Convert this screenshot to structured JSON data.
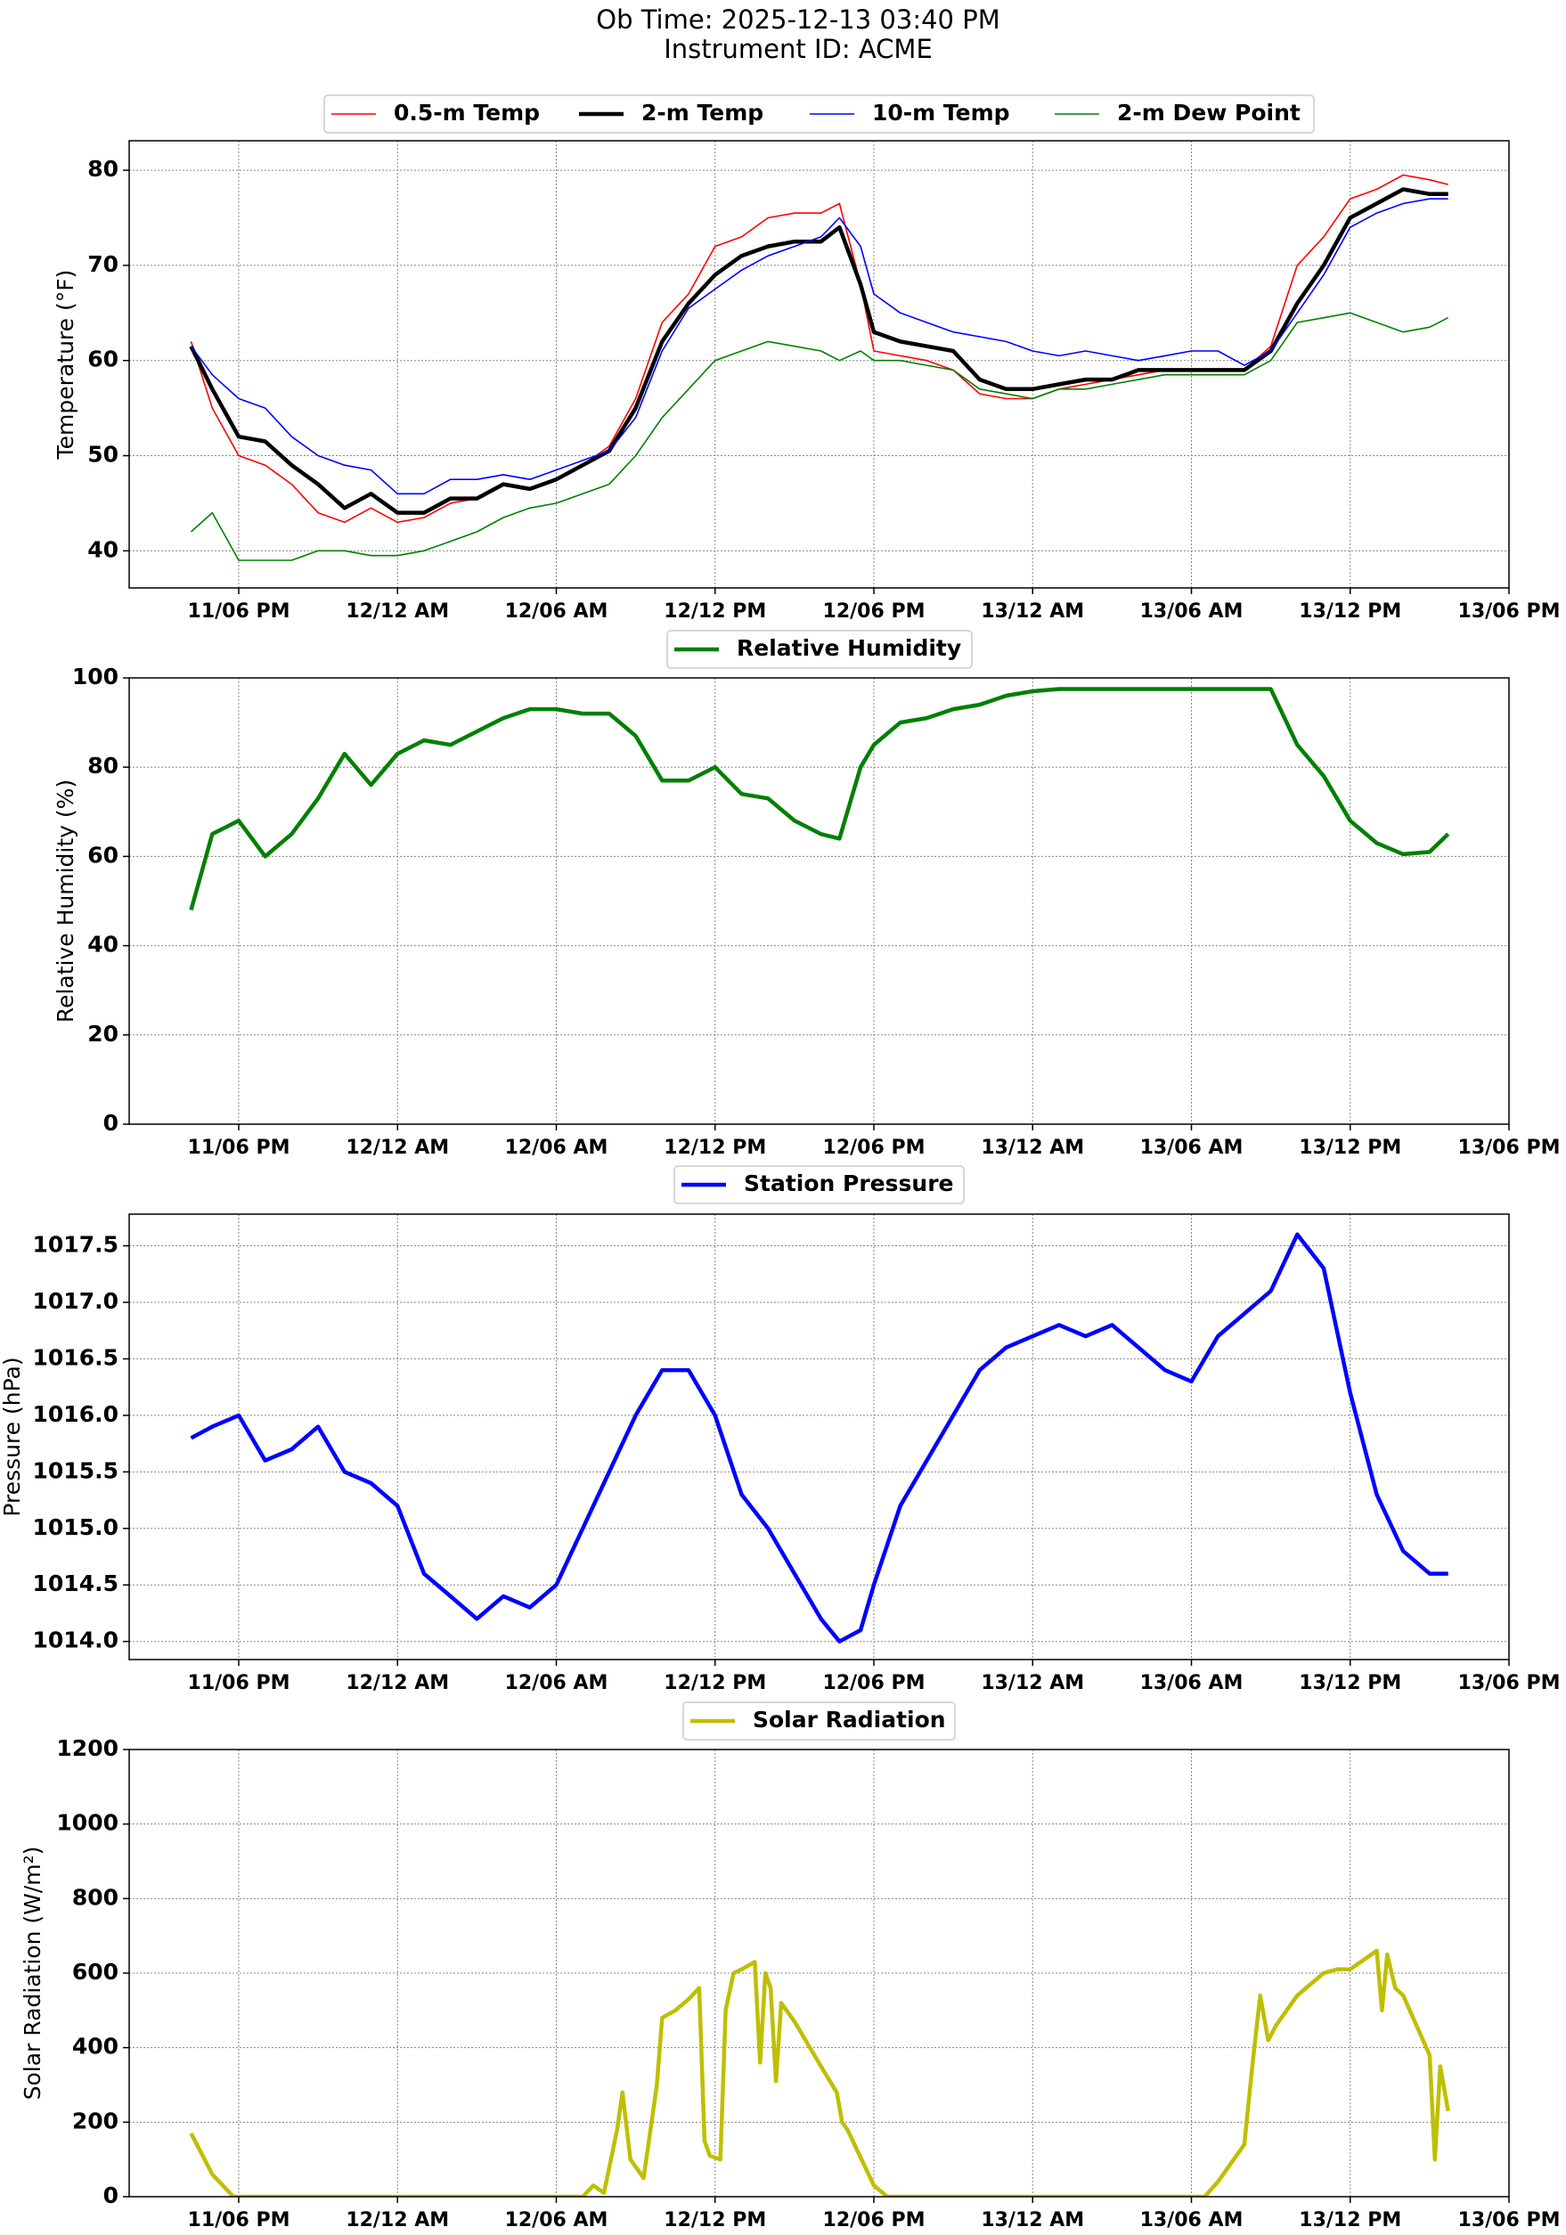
{
  "header": {
    "title_line1": "Ob Time: 2025-12-13 03:40 PM",
    "title_line2": "Instrument ID: ACME"
  },
  "x_axis": {
    "units": "hours since 11/06 PM",
    "range": [
      -4.14,
      48
    ],
    "tick_values": [
      0,
      6,
      12,
      18,
      24,
      30,
      36,
      42,
      48
    ],
    "tick_labels": [
      "11/06 PM",
      "12/12 AM",
      "12/06 AM",
      "12/12 PM",
      "12/06 PM",
      "13/12 AM",
      "13/06 AM",
      "13/12 PM",
      "13/06 PM"
    ]
  },
  "hours": [
    -1.8,
    -1,
    0,
    1,
    2,
    3,
    4,
    5,
    6,
    7,
    8,
    9,
    10,
    11,
    12,
    13,
    14,
    15,
    16,
    17,
    18,
    19,
    20,
    21,
    22,
    22.7,
    23.5,
    24,
    25,
    26,
    27,
    28,
    29,
    30,
    31,
    32,
    33,
    34,
    35,
    36,
    37,
    38,
    39,
    40,
    41,
    42,
    43,
    44,
    45,
    45.7
  ],
  "chart_data": [
    {
      "type": "line",
      "ylabel": "Temperature (°F)",
      "ylim": [
        36.1,
        83.1
      ],
      "yticks": [
        40,
        50,
        60,
        70,
        80
      ],
      "grid": true,
      "legend_placement": "top-center",
      "series": [
        {
          "name": "0.5-m Temp",
          "color": "#ff0000",
          "width": 1.6,
          "values": [
            62,
            55,
            50,
            49,
            47,
            44,
            43,
            44.5,
            43,
            43.5,
            45,
            45.5,
            47,
            46.5,
            47.5,
            49,
            51,
            56,
            64,
            67,
            72,
            73,
            75,
            75.5,
            75.5,
            76.5,
            68,
            61,
            60.5,
            60,
            59,
            56.5,
            56,
            56,
            57,
            57.5,
            58,
            58.5,
            59,
            59,
            59,
            59,
            61.5,
            70,
            73,
            77,
            78,
            79.5,
            79,
            78.5
          ]
        },
        {
          "name": "2-m Temp",
          "color": "#000000",
          "width": 4.5,
          "values": [
            61.5,
            57,
            52,
            51.5,
            49,
            47,
            44.5,
            46,
            44,
            44,
            45.5,
            45.5,
            47,
            46.5,
            47.5,
            49,
            50.5,
            55,
            62,
            66,
            69,
            71,
            72,
            72.5,
            72.5,
            74,
            68,
            63,
            62,
            61.5,
            61,
            58,
            57,
            57,
            57.5,
            58,
            58,
            59,
            59,
            59,
            59,
            59,
            61,
            66,
            70,
            75,
            76.5,
            78,
            77.5,
            77.5
          ]
        },
        {
          "name": "10-m Temp",
          "color": "#0000ff",
          "width": 1.6,
          "values": [
            61.5,
            58.5,
            56,
            55,
            52,
            50,
            49,
            48.5,
            46,
            46,
            47.5,
            47.5,
            48,
            47.5,
            48.5,
            49.5,
            50.5,
            54,
            61,
            65.5,
            67.5,
            69.5,
            71,
            72,
            73,
            75,
            72,
            67,
            65,
            64,
            63,
            62.5,
            62,
            61,
            60.5,
            61,
            60.5,
            60,
            60.5,
            61,
            61,
            59.5,
            61,
            65,
            69,
            74,
            75.5,
            76.5,
            77,
            77
          ]
        },
        {
          "name": "2-m Dew Point",
          "color": "#008000",
          "width": 1.6,
          "values": [
            42,
            44,
            39,
            39,
            39,
            40,
            40,
            39.5,
            39.5,
            40,
            41,
            42,
            43.5,
            44.5,
            45,
            46,
            47,
            50,
            54,
            57,
            60,
            61,
            62,
            61.5,
            61,
            60,
            61,
            60,
            60,
            59.5,
            59,
            57,
            56.5,
            56,
            57,
            57,
            57.5,
            58,
            58.5,
            58.5,
            58.5,
            58.5,
            60,
            64,
            64.5,
            65,
            64,
            63,
            63.5,
            64.5
          ]
        }
      ]
    },
    {
      "type": "line",
      "ylabel": "Relative Humidity (%)",
      "ylim": [
        0,
        100
      ],
      "yticks": [
        0,
        20,
        40,
        60,
        80,
        100
      ],
      "grid": true,
      "legend_placement": "top-center",
      "series": [
        {
          "name": "Relative Humidity",
          "color": "#008000",
          "width": 4.5,
          "values": [
            48,
            65,
            68,
            60,
            65,
            73,
            83,
            76,
            83,
            86,
            85,
            88,
            91,
            93,
            93,
            92,
            92,
            87,
            77,
            77,
            80,
            74,
            73,
            68,
            65,
            64,
            80,
            85,
            90,
            91,
            93,
            94,
            96,
            97,
            97.5,
            97.5,
            97.5,
            97.5,
            97.5,
            97.5,
            97.5,
            97.5,
            97.5,
            85,
            78,
            68,
            63,
            60.5,
            61,
            65
          ]
        }
      ]
    },
    {
      "type": "line",
      "ylabel": "Pressure (hPa)",
      "ylim": [
        1013.84,
        1017.78
      ],
      "yticks": [
        1014.0,
        1014.5,
        1015.0,
        1015.5,
        1016.0,
        1016.5,
        1017.0,
        1017.5
      ],
      "ytick_labels": [
        "1014.0",
        "1014.5",
        "1015.0",
        "1015.5",
        "1016.0",
        "1016.5",
        "1017.0",
        "1017.5"
      ],
      "grid": true,
      "legend_placement": "top-center",
      "series": [
        {
          "name": "Station Pressure",
          "color": "#0000ff",
          "width": 4.5,
          "values": [
            1015.8,
            1015.9,
            1016.0,
            1015.6,
            1015.7,
            1015.9,
            1015.5,
            1015.4,
            1015.2,
            1014.6,
            1014.4,
            1014.2,
            1014.4,
            1014.3,
            1014.5,
            1015.0,
            1015.5,
            1016.0,
            1016.4,
            1016.4,
            1016.0,
            1015.3,
            1015.0,
            1014.6,
            1014.2,
            1014.0,
            1014.1,
            1014.5,
            1015.2,
            1015.6,
            1016.0,
            1016.4,
            1016.6,
            1016.7,
            1016.8,
            1016.7,
            1016.8,
            1016.6,
            1016.4,
            1016.3,
            1016.7,
            1016.9,
            1017.1,
            1017.6,
            1017.3,
            1016.2,
            1015.3,
            1014.8,
            1014.6,
            1014.6
          ]
        }
      ]
    },
    {
      "type": "line",
      "ylabel": "Solar Radiation (W/m²)",
      "ylim": [
        0,
        1200
      ],
      "yticks": [
        0,
        200,
        400,
        600,
        800,
        1000,
        1200
      ],
      "grid": true,
      "legend_placement": "top-center",
      "series": [
        {
          "name": "Solar Radiation",
          "color": "#bfbf00",
          "width": 4.5,
          "x": [
            -1.8,
            -1,
            -0.2,
            12,
            13,
            13.4,
            13.8,
            14.3,
            14.5,
            14.8,
            15.3,
            15.8,
            16,
            16.5,
            17,
            17.4,
            17.6,
            17.8,
            18.2,
            18.4,
            18.7,
            19,
            19.5,
            19.7,
            19.9,
            20.1,
            20.3,
            20.5,
            21,
            22,
            22.6,
            22.8,
            23,
            24,
            24.5,
            36.5,
            37,
            38,
            38.3,
            38.6,
            38.9,
            39.2,
            40,
            41,
            41.5,
            42,
            43,
            43.2,
            43.4,
            43.7,
            44,
            45,
            45.2,
            45.4,
            45.7
          ],
          "values": [
            170,
            60,
            0,
            0,
            0,
            30,
            10,
            180,
            280,
            100,
            50,
            300,
            480,
            500,
            530,
            560,
            150,
            110,
            100,
            500,
            600,
            610,
            630,
            360,
            600,
            560,
            310,
            520,
            470,
            350,
            280,
            200,
            180,
            30,
            0,
            0,
            40,
            140,
            350,
            540,
            420,
            460,
            540,
            600,
            610,
            610,
            660,
            500,
            650,
            560,
            540,
            380,
            100,
            350,
            230
          ]
        }
      ]
    }
  ]
}
